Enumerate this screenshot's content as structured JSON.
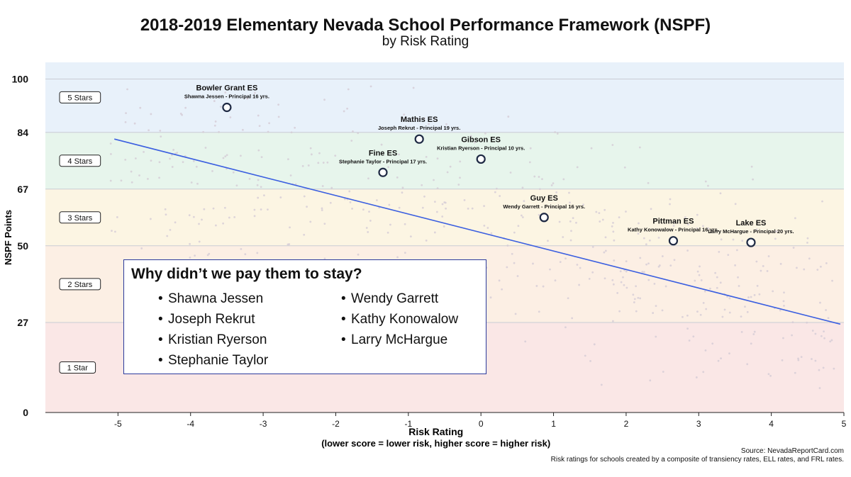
{
  "chart_data": {
    "type": "scatter",
    "title": "2018-2019 Elementary Nevada School Performance Framework (NSPF)",
    "subtitle": "by Risk Rating",
    "xlabel": "Risk Rating",
    "xlabel_note": "(lower score = lower risk, higher score = higher risk)",
    "ylabel": "NSPF Points",
    "xlim": [
      -6,
      5
    ],
    "ylim": [
      0,
      105
    ],
    "x_ticks": [
      -5,
      -4,
      -3,
      -2,
      -1,
      0,
      1,
      2,
      3,
      4,
      5
    ],
    "y_ticks": [
      0,
      27,
      50,
      67,
      84,
      100
    ],
    "grid": true,
    "bands": [
      {
        "label": "5 Stars",
        "from": 84,
        "to": 105,
        "color": "#e8f1fa"
      },
      {
        "label": "4 Stars",
        "from": 67,
        "to": 84,
        "color": "#e7f5ec"
      },
      {
        "label": "3 Stars",
        "from": 50,
        "to": 67,
        "color": "#fcf5e3"
      },
      {
        "label": "2 Stars",
        "from": 27,
        "to": 50,
        "color": "#fcefe4"
      },
      {
        "label": "1 Star",
        "from": 0,
        "to": 27,
        "color": "#fae7e6"
      }
    ],
    "highlighted": [
      {
        "name": "Bowler Grant ES",
        "principal": "Shawna Jessen - Principal 16 yrs.",
        "x": -3.5,
        "y": 91.5
      },
      {
        "name": "Mathis ES",
        "principal": "Joseph Rekrut - Principal 19 yrs.",
        "x": -0.85,
        "y": 82
      },
      {
        "name": "Gibson ES",
        "principal": "Kristian Ryerson - Principal 10 yrs.",
        "x": 0.0,
        "y": 76
      },
      {
        "name": "Fine  ES",
        "principal": "Stephanie Taylor - Principal 17 yrs.",
        "x": -1.35,
        "y": 72
      },
      {
        "name": "Guy ES",
        "principal": "Wendy Garrett - Principal 16 yrs.",
        "x": 0.87,
        "y": 58.5
      },
      {
        "name": "Pittman ES",
        "principal": "Kathy Konowalow - Principal 16 yrs.",
        "x": 2.65,
        "y": 51.5
      },
      {
        "name": "Lake ES",
        "principal": "Larry McHargue - Principal 20 yrs.",
        "x": 3.72,
        "y": 51
      }
    ],
    "trendline": {
      "x": [
        -5.05,
        4.95
      ],
      "y": [
        82,
        26.5
      ],
      "color": "#3b5fe0"
    },
    "highlight_color": "#1f2a44",
    "background_point_color": "#d4ccd6"
  },
  "callout": {
    "title": "Why didn’t we pay them to stay?",
    "left": [
      "Shawna Jessen",
      "Joseph Rekrut",
      "Kristian Ryerson",
      "Stephanie Taylor"
    ],
    "right": [
      "Wendy Garrett",
      "Kathy Konowalow",
      "Larry McHargue"
    ]
  },
  "source": "Source: NevadaReportCard.com",
  "footnote": "Risk ratings for schools created by a composite of transiency rates, ELL rates, and FRL rates."
}
